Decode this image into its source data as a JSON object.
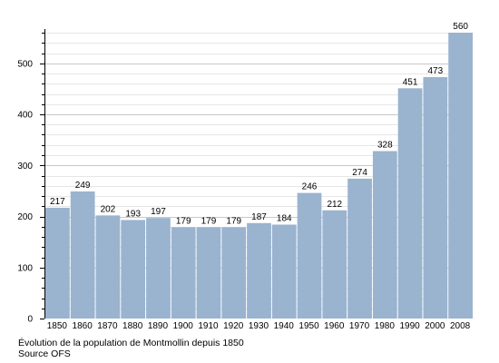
{
  "chart_data": {
    "type": "bar",
    "categories": [
      "1850",
      "1860",
      "1870",
      "1880",
      "1890",
      "1900",
      "1910",
      "1920",
      "1930",
      "1940",
      "1950",
      "1960",
      "1970",
      "1980",
      "1990",
      "2000",
      "2008"
    ],
    "values": [
      217,
      249,
      202,
      193,
      197,
      179,
      179,
      179,
      187,
      184,
      246,
      212,
      274,
      328,
      451,
      473,
      560
    ],
    "ylim": [
      0,
      560
    ],
    "yticks": [
      0,
      100,
      200,
      300,
      400,
      500
    ],
    "grid": true,
    "bar_color": "#9ab3cf",
    "xlabel": "",
    "ylabel": ""
  },
  "caption": {
    "line1": "Évolution de la population de Montmollin depuis 1850",
    "line2": "Source OFS"
  }
}
